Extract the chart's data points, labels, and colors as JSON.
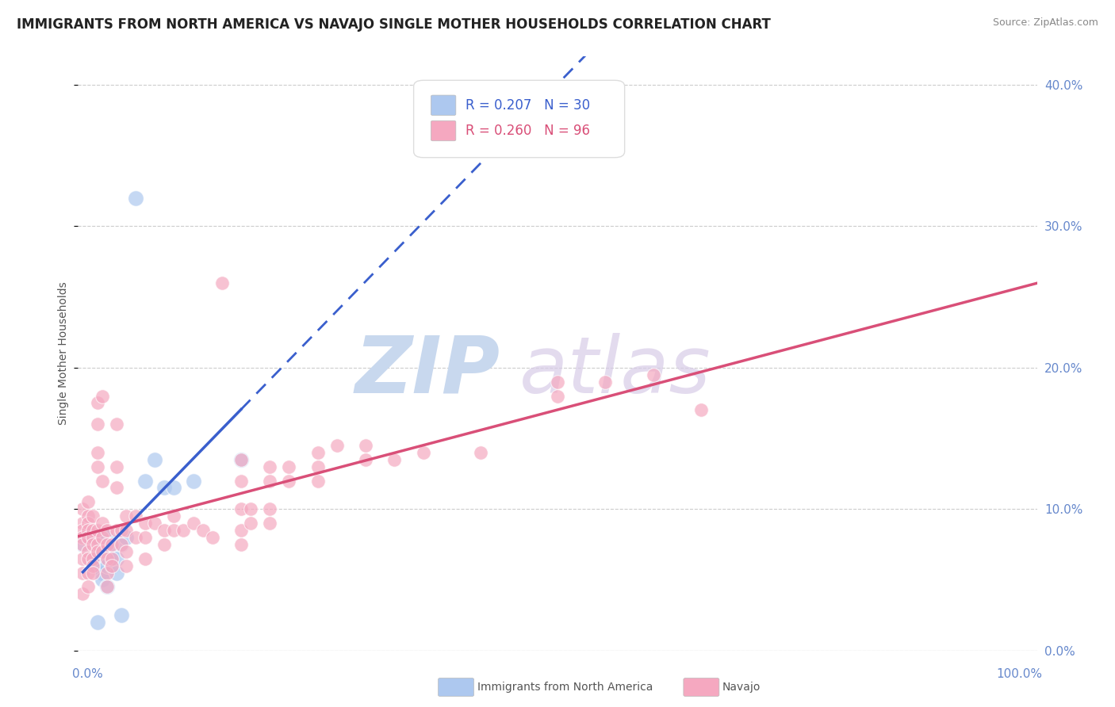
{
  "title": "IMMIGRANTS FROM NORTH AMERICA VS NAVAJO SINGLE MOTHER HOUSEHOLDS CORRELATION CHART",
  "source": "Source: ZipAtlas.com",
  "ylabel": "Single Mother Households",
  "legend1_label": "Immigrants from North America",
  "legend2_label": "Navajo",
  "r1": 0.207,
  "n1": 30,
  "r2": 0.26,
  "n2": 96,
  "blue_color": "#adc8ef",
  "pink_color": "#f5a8c0",
  "blue_line_color": "#3a5fcd",
  "pink_line_color": "#d94f78",
  "background_color": "#ffffff",
  "grid_color": "#cccccc",
  "right_axis_color": "#6688cc",
  "blue_scatter": [
    [
      0.5,
      7.5
    ],
    [
      1.0,
      8.0
    ],
    [
      1.5,
      6.5
    ],
    [
      2.0,
      8.0
    ],
    [
      2.0,
      6.5
    ],
    [
      2.0,
      6.0
    ],
    [
      2.5,
      7.0
    ],
    [
      2.5,
      5.5
    ],
    [
      2.5,
      5.0
    ],
    [
      3.0,
      8.0
    ],
    [
      3.0,
      7.5
    ],
    [
      3.0,
      6.5
    ],
    [
      3.0,
      6.0
    ],
    [
      3.0,
      4.5
    ],
    [
      3.5,
      7.0
    ],
    [
      3.5,
      6.5
    ],
    [
      3.5,
      6.0
    ],
    [
      4.0,
      6.5
    ],
    [
      4.0,
      5.5
    ],
    [
      4.5,
      7.5
    ],
    [
      5.0,
      8.0
    ],
    [
      6.0,
      32.0
    ],
    [
      7.0,
      12.0
    ],
    [
      8.0,
      13.5
    ],
    [
      9.0,
      11.5
    ],
    [
      10.0,
      11.5
    ],
    [
      12.0,
      12.0
    ],
    [
      17.0,
      13.5
    ],
    [
      2.0,
      2.0
    ],
    [
      4.5,
      2.5
    ]
  ],
  "pink_scatter": [
    [
      0.5,
      10.0
    ],
    [
      0.5,
      9.0
    ],
    [
      0.5,
      8.5
    ],
    [
      0.5,
      8.0
    ],
    [
      0.5,
      7.5
    ],
    [
      0.5,
      6.5
    ],
    [
      0.5,
      5.5
    ],
    [
      0.5,
      4.0
    ],
    [
      1.0,
      10.5
    ],
    [
      1.0,
      9.5
    ],
    [
      1.0,
      9.0
    ],
    [
      1.0,
      8.5
    ],
    [
      1.0,
      8.0
    ],
    [
      1.0,
      7.0
    ],
    [
      1.0,
      6.5
    ],
    [
      1.0,
      5.5
    ],
    [
      1.0,
      4.5
    ],
    [
      1.5,
      9.5
    ],
    [
      1.5,
      8.5
    ],
    [
      1.5,
      8.0
    ],
    [
      1.5,
      7.5
    ],
    [
      1.5,
      6.5
    ],
    [
      1.5,
      6.0
    ],
    [
      1.5,
      5.5
    ],
    [
      2.0,
      17.5
    ],
    [
      2.0,
      16.0
    ],
    [
      2.0,
      14.0
    ],
    [
      2.0,
      13.0
    ],
    [
      2.0,
      8.5
    ],
    [
      2.0,
      7.5
    ],
    [
      2.0,
      7.0
    ],
    [
      2.5,
      18.0
    ],
    [
      2.5,
      12.0
    ],
    [
      2.5,
      9.0
    ],
    [
      2.5,
      8.0
    ],
    [
      2.5,
      7.0
    ],
    [
      3.0,
      8.5
    ],
    [
      3.0,
      7.5
    ],
    [
      3.0,
      6.5
    ],
    [
      3.0,
      5.5
    ],
    [
      3.0,
      4.5
    ],
    [
      3.5,
      7.5
    ],
    [
      3.5,
      6.5
    ],
    [
      3.5,
      6.0
    ],
    [
      4.0,
      16.0
    ],
    [
      4.0,
      13.0
    ],
    [
      4.0,
      11.5
    ],
    [
      4.0,
      8.5
    ],
    [
      4.5,
      8.5
    ],
    [
      4.5,
      7.5
    ],
    [
      5.0,
      9.5
    ],
    [
      5.0,
      8.5
    ],
    [
      5.0,
      7.0
    ],
    [
      5.0,
      6.0
    ],
    [
      6.0,
      9.5
    ],
    [
      6.0,
      8.0
    ],
    [
      7.0,
      9.0
    ],
    [
      7.0,
      8.0
    ],
    [
      7.0,
      6.5
    ],
    [
      8.0,
      9.0
    ],
    [
      9.0,
      8.5
    ],
    [
      9.0,
      7.5
    ],
    [
      10.0,
      9.5
    ],
    [
      10.0,
      8.5
    ],
    [
      11.0,
      8.5
    ],
    [
      12.0,
      9.0
    ],
    [
      13.0,
      8.5
    ],
    [
      14.0,
      8.0
    ],
    [
      15.0,
      26.0
    ],
    [
      17.0,
      13.5
    ],
    [
      17.0,
      12.0
    ],
    [
      17.0,
      10.0
    ],
    [
      17.0,
      8.5
    ],
    [
      17.0,
      7.5
    ],
    [
      18.0,
      10.0
    ],
    [
      18.0,
      9.0
    ],
    [
      20.0,
      13.0
    ],
    [
      20.0,
      12.0
    ],
    [
      20.0,
      10.0
    ],
    [
      20.0,
      9.0
    ],
    [
      22.0,
      13.0
    ],
    [
      22.0,
      12.0
    ],
    [
      25.0,
      14.0
    ],
    [
      25.0,
      13.0
    ],
    [
      25.0,
      12.0
    ],
    [
      27.0,
      14.5
    ],
    [
      30.0,
      14.5
    ],
    [
      30.0,
      13.5
    ],
    [
      33.0,
      13.5
    ],
    [
      36.0,
      14.0
    ],
    [
      42.0,
      14.0
    ],
    [
      50.0,
      19.0
    ],
    [
      50.0,
      18.0
    ],
    [
      55.0,
      19.0
    ],
    [
      60.0,
      19.5
    ],
    [
      65.0,
      17.0
    ]
  ],
  "xlim": [
    0.0,
    100.0
  ],
  "ylim": [
    0.0,
    42.0
  ],
  "yticks": [
    0.0,
    10.0,
    20.0,
    30.0,
    40.0
  ],
  "ytick_labels_right": [
    "0.0%",
    "10.0%",
    "20.0%",
    "30.0%",
    "40.0%"
  ],
  "title_fontsize": 12,
  "axis_label_fontsize": 10,
  "tick_fontsize": 11
}
